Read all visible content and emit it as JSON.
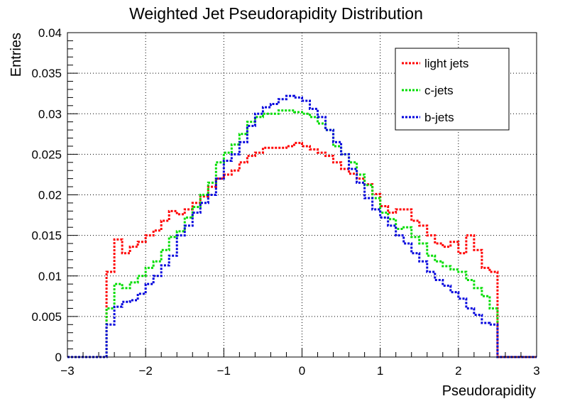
{
  "chart_data": {
    "type": "line",
    "title": "Weighted Jet Pseudorapidity Distribution",
    "xlabel": "Pseudorapidity",
    "ylabel": "Entries",
    "xlim": [
      -3,
      3
    ],
    "ylim": [
      0,
      0.04
    ],
    "x_ticks": [
      "−3",
      "−2",
      "−1",
      "0",
      "1",
      "2",
      "3"
    ],
    "y_ticks": [
      "0",
      "0.005",
      "0.01",
      "0.015",
      "0.02",
      "0.025",
      "0.03",
      "0.035",
      "0.04"
    ],
    "grid": true,
    "legend_position": "top-right",
    "bins": {
      "start": -3.0,
      "width": 0.1,
      "count": 60
    },
    "series": [
      {
        "name": "light jets",
        "color": "#ff0000",
        "values": [
          0,
          0,
          0,
          0,
          0,
          0.0105,
          0.0145,
          0.0128,
          0.0136,
          0.0142,
          0.015,
          0.0156,
          0.0168,
          0.018,
          0.0176,
          0.0182,
          0.019,
          0.0198,
          0.021,
          0.022,
          0.0225,
          0.023,
          0.024,
          0.0248,
          0.0252,
          0.0258,
          0.0258,
          0.0258,
          0.026,
          0.0264,
          0.026,
          0.0256,
          0.0252,
          0.0248,
          0.024,
          0.0232,
          0.0226,
          0.022,
          0.0213,
          0.0201,
          0.0186,
          0.0178,
          0.0182,
          0.0182,
          0.0168,
          0.0162,
          0.015,
          0.014,
          0.0136,
          0.0142,
          0.0128,
          0.015,
          0.0132,
          0.011,
          0.0105,
          0,
          0,
          0,
          0,
          0
        ]
      },
      {
        "name": "c-jets",
        "color": "#00dd00",
        "values": [
          0,
          0,
          0,
          0,
          0,
          0.006,
          0.009,
          0.0085,
          0.0092,
          0.01,
          0.011,
          0.0118,
          0.0132,
          0.0148,
          0.0155,
          0.0172,
          0.0185,
          0.02,
          0.0215,
          0.024,
          0.0252,
          0.0262,
          0.0275,
          0.029,
          0.0296,
          0.03,
          0.03,
          0.0304,
          0.0304,
          0.0302,
          0.03,
          0.0296,
          0.0288,
          0.028,
          0.026,
          0.025,
          0.024,
          0.0225,
          0.0212,
          0.0196,
          0.0178,
          0.017,
          0.0158,
          0.016,
          0.0148,
          0.014,
          0.0125,
          0.0118,
          0.0112,
          0.0108,
          0.0105,
          0.0095,
          0.0085,
          0.0075,
          0.006,
          0,
          0,
          0,
          0,
          0
        ]
      },
      {
        "name": "b-jets",
        "color": "#0000dd",
        "values": [
          0,
          0,
          0,
          0,
          0,
          0.004,
          0.0062,
          0.0068,
          0.007,
          0.0078,
          0.009,
          0.01,
          0.0113,
          0.0125,
          0.015,
          0.0162,
          0.0178,
          0.019,
          0.02,
          0.022,
          0.0242,
          0.025,
          0.0265,
          0.0285,
          0.03,
          0.0308,
          0.0312,
          0.0318,
          0.0322,
          0.032,
          0.0316,
          0.0306,
          0.0296,
          0.028,
          0.0265,
          0.025,
          0.0232,
          0.0215,
          0.0196,
          0.0182,
          0.0172,
          0.0162,
          0.015,
          0.014,
          0.0128,
          0.0118,
          0.0105,
          0.0095,
          0.0088,
          0.008,
          0.0072,
          0.006,
          0.0052,
          0.0042,
          0.004,
          0,
          0,
          0,
          0,
          0
        ]
      }
    ]
  }
}
